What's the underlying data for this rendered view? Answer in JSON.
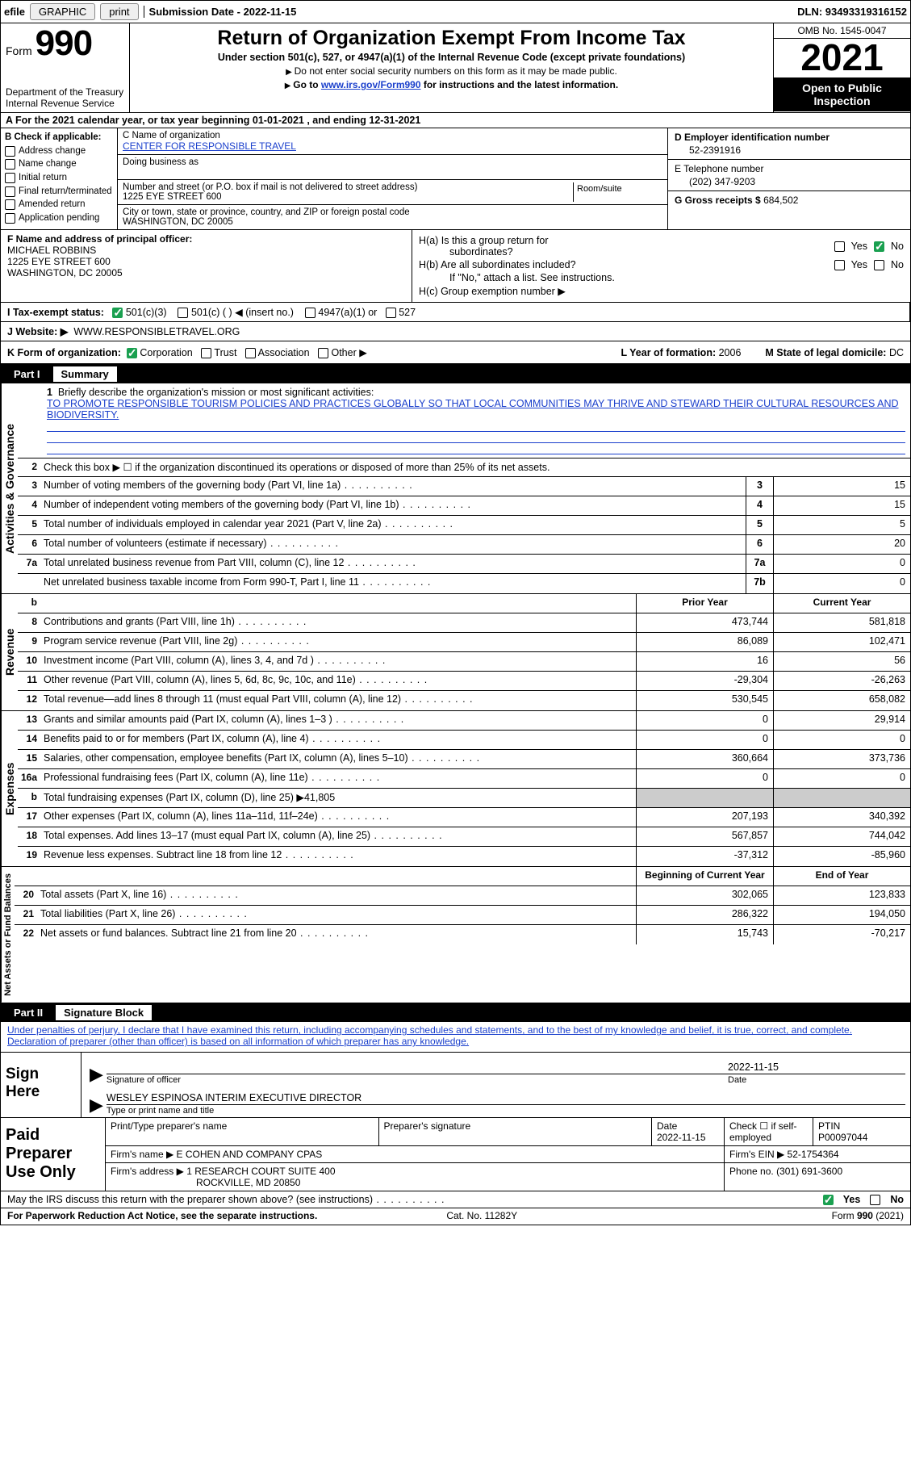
{
  "topbar": {
    "efile_prefix": "efile",
    "graphic_btn": "GRAPHIC",
    "print_btn": "print",
    "submission_label": "Submission Date - 2022-11-15",
    "dln_label": "DLN: 93493319316152"
  },
  "header": {
    "form_word": "Form",
    "form_num": "990",
    "dept": "Department of the Treasury",
    "irs": "Internal Revenue Service",
    "title": "Return of Organization Exempt From Income Tax",
    "subtitle": "Under section 501(c), 527, or 4947(a)(1) of the Internal Revenue Code (except private foundations)",
    "note1": "Do not enter social security numbers on this form as it may be made public.",
    "note2_pre": "Go to ",
    "note2_link": "www.irs.gov/Form990",
    "note2_post": " for instructions and the latest information.",
    "omb": "OMB No. 1545-0047",
    "year": "2021",
    "open_pub": "Open to Public Inspection"
  },
  "rowA": "A  For the 2021 calendar year, or tax year beginning 01-01-2021   , and ending 12-31-2021",
  "boxB": {
    "title": "B Check if applicable:",
    "items": [
      "Address change",
      "Name change",
      "Initial return",
      "Final return/terminated",
      "Amended return",
      "Application pending"
    ]
  },
  "boxC": {
    "name_label": "C Name of organization",
    "org_name": "CENTER FOR RESPONSIBLE TRAVEL",
    "dba_label": "Doing business as",
    "addr_label": "Number and street (or P.O. box if mail is not delivered to street address)",
    "room_label": "Room/suite",
    "addr": "1225 EYE STREET 600",
    "city_label": "City or town, state or province, country, and ZIP or foreign postal code",
    "city": "WASHINGTON, DC  20005"
  },
  "boxD": {
    "ein_label": "D Employer identification number",
    "ein": "52-2391916",
    "phone_label": "E Telephone number",
    "phone": "(202) 347-9203",
    "gross_label": "G Gross receipts $",
    "gross": "684,502"
  },
  "boxF": {
    "label": "F Name and address of principal officer:",
    "name": "MICHAEL ROBBINS",
    "addr1": "1225 EYE STREET 600",
    "addr2": "WASHINGTON, DC  20005"
  },
  "boxH": {
    "a_label": "H(a)  Is this a group return for",
    "a_label2": "subordinates?",
    "b_label": "H(b)  Are all subordinates included?",
    "b_note": "If \"No,\" attach a list. See instructions.",
    "c_label": "H(c)  Group exemption number ▶"
  },
  "rowI": {
    "label": "I   Tax-exempt status:",
    "o1": "501(c)(3)",
    "o2": "501(c) (  ) ◀ (insert no.)",
    "o3": "4947(a)(1) or",
    "o4": "527"
  },
  "rowJ": {
    "label": "J   Website: ▶",
    "value": "WWW.RESPONSIBLETRAVEL.ORG"
  },
  "rowK": {
    "label": "K Form of organization:",
    "o1": "Corporation",
    "o2": "Trust",
    "o3": "Association",
    "o4": "Other ▶",
    "l_label": "L Year of formation:",
    "l_val": "2006",
    "m_label": "M State of legal domicile:",
    "m_val": "DC"
  },
  "part1": {
    "num": "Part I",
    "title": "Summary"
  },
  "mission": {
    "q": "Briefly describe the organization's mission or most significant activities:",
    "text": "TO PROMOTE RESPONSIBLE TOURISM POLICIES AND PRACTICES GLOBALLY SO THAT LOCAL COMMUNITIES MAY THRIVE AND STEWARD THEIR CULTURAL RESOURCES AND BIODIVERSITY."
  },
  "line2": "Check this box ▶ ☐ if the organization discontinued its operations or disposed of more than 25% of its net assets.",
  "gov_lines": [
    {
      "n": "3",
      "d": "Number of voting members of the governing body (Part VI, line 1a)",
      "b": "3",
      "v": "15"
    },
    {
      "n": "4",
      "d": "Number of independent voting members of the governing body (Part VI, line 1b)",
      "b": "4",
      "v": "15"
    },
    {
      "n": "5",
      "d": "Total number of individuals employed in calendar year 2021 (Part V, line 2a)",
      "b": "5",
      "v": "5"
    },
    {
      "n": "6",
      "d": "Total number of volunteers (estimate if necessary)",
      "b": "6",
      "v": "20"
    },
    {
      "n": "7a",
      "d": "Total unrelated business revenue from Part VIII, column (C), line 12",
      "b": "7a",
      "v": "0"
    },
    {
      "n": "",
      "d": "Net unrelated business taxable income from Form 990-T, Part I, line 11",
      "b": "7b",
      "v": "0"
    }
  ],
  "col_hdrs": {
    "prior": "Prior Year",
    "current": "Current Year"
  },
  "revenue_lines": [
    {
      "n": "8",
      "d": "Contributions and grants (Part VIII, line 1h)",
      "p": "473,744",
      "c": "581,818"
    },
    {
      "n": "9",
      "d": "Program service revenue (Part VIII, line 2g)",
      "p": "86,089",
      "c": "102,471"
    },
    {
      "n": "10",
      "d": "Investment income (Part VIII, column (A), lines 3, 4, and 7d )",
      "p": "16",
      "c": "56"
    },
    {
      "n": "11",
      "d": "Other revenue (Part VIII, column (A), lines 5, 6d, 8c, 9c, 10c, and 11e)",
      "p": "-29,304",
      "c": "-26,263"
    },
    {
      "n": "12",
      "d": "Total revenue—add lines 8 through 11 (must equal Part VIII, column (A), line 12)",
      "p": "530,545",
      "c": "658,082"
    }
  ],
  "expense_lines": [
    {
      "n": "13",
      "d": "Grants and similar amounts paid (Part IX, column (A), lines 1–3 )",
      "p": "0",
      "c": "29,914"
    },
    {
      "n": "14",
      "d": "Benefits paid to or for members (Part IX, column (A), line 4)",
      "p": "0",
      "c": "0"
    },
    {
      "n": "15",
      "d": "Salaries, other compensation, employee benefits (Part IX, column (A), lines 5–10)",
      "p": "360,664",
      "c": "373,736"
    },
    {
      "n": "16a",
      "d": "Professional fundraising fees (Part IX, column (A), line 11e)",
      "p": "0",
      "c": "0"
    },
    {
      "n": "b",
      "d": "Total fundraising expenses (Part IX, column (D), line 25) ▶41,805",
      "p": "__GREY__",
      "c": "__GREY__"
    },
    {
      "n": "17",
      "d": "Other expenses (Part IX, column (A), lines 11a–11d, 11f–24e)",
      "p": "207,193",
      "c": "340,392"
    },
    {
      "n": "18",
      "d": "Total expenses. Add lines 13–17 (must equal Part IX, column (A), line 25)",
      "p": "567,857",
      "c": "744,042"
    },
    {
      "n": "19",
      "d": "Revenue less expenses. Subtract line 18 from line 12",
      "p": "-37,312",
      "c": "-85,960"
    }
  ],
  "net_hdrs": {
    "begin": "Beginning of Current Year",
    "end": "End of Year"
  },
  "net_lines": [
    {
      "n": "20",
      "d": "Total assets (Part X, line 16)",
      "p": "302,065",
      "c": "123,833"
    },
    {
      "n": "21",
      "d": "Total liabilities (Part X, line 26)",
      "p": "286,322",
      "c": "194,050"
    },
    {
      "n": "22",
      "d": "Net assets or fund balances. Subtract line 21 from line 20",
      "p": "15,743",
      "c": "-70,217"
    }
  ],
  "vert": {
    "gov": "Activities & Governance",
    "rev": "Revenue",
    "exp": "Expenses",
    "net": "Net Assets or Fund Balances"
  },
  "part2": {
    "num": "Part II",
    "title": "Signature Block"
  },
  "sig_decl": "Under penalties of perjury, I declare that I have examined this return, including accompanying schedules and statements, and to the best of my knowledge and belief, it is true, correct, and complete. Declaration of preparer (other than officer) is based on all information of which preparer has any knowledge.",
  "sign": {
    "here": "Sign Here",
    "sig_label": "Signature of officer",
    "date_label": "Date",
    "date": "2022-11-15",
    "name": "WESLEY ESPINOSA  INTERIM EXECUTIVE DIRECTOR",
    "name_label": "Type or print name and title"
  },
  "prep": {
    "left": "Paid Preparer Use Only",
    "r1": {
      "c1": "Print/Type preparer's name",
      "c2": "Preparer's signature",
      "c3l": "Date",
      "c3v": "2022-11-15",
      "c4": "Check ☐ if self-employed",
      "c5l": "PTIN",
      "c5v": "P00097044"
    },
    "r2": {
      "l": "Firm's name    ▶",
      "v": "E COHEN AND COMPANY CPAS",
      "einl": "Firm's EIN ▶",
      "einv": "52-1754364"
    },
    "r3": {
      "l": "Firm's address ▶",
      "v1": "1 RESEARCH COURT SUITE 400",
      "v2": "ROCKVILLE, MD  20850",
      "phl": "Phone no.",
      "phv": "(301) 691-3600"
    }
  },
  "discuss": "May the IRS discuss this return with the preparer shown above? (see instructions)",
  "footer": {
    "left": "For Paperwork Reduction Act Notice, see the separate instructions.",
    "mid": "Cat. No. 11282Y",
    "right": "Form 990 (2021)"
  }
}
